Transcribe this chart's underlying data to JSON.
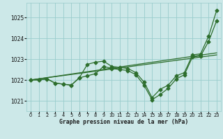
{
  "xlabel": "Graphe pression niveau de la mer (hPa)",
  "background_color": "#cce8e8",
  "grid_color": "#99cccc",
  "line_color": "#2d6e2d",
  "ylim": [
    1020.5,
    1025.7
  ],
  "yticks": [
    1021,
    1022,
    1023,
    1024,
    1025
  ],
  "xlim": [
    -0.5,
    23.5
  ],
  "xticks": [
    0,
    1,
    2,
    3,
    4,
    5,
    6,
    7,
    8,
    9,
    10,
    11,
    12,
    13,
    14,
    15,
    16,
    17,
    18,
    19,
    20,
    21,
    22,
    23
  ],
  "s1": [
    1022.0,
    1022.0,
    1022.05,
    1021.85,
    1021.8,
    1021.75,
    1022.1,
    1022.75,
    1022.85,
    1022.9,
    1022.65,
    1022.6,
    1022.55,
    1022.35,
    1021.9,
    1021.15,
    1021.55,
    1021.75,
    1022.2,
    1022.35,
    1023.2,
    1023.25,
    1024.1,
    1025.35
  ],
  "s2": [
    1022.0,
    1022.0,
    1022.05,
    1021.85,
    1021.8,
    1021.75,
    1022.1,
    1022.2,
    1022.3,
    1022.65,
    1022.55,
    1022.5,
    1022.45,
    1022.25,
    1021.75,
    1021.05,
    1021.3,
    1021.6,
    1022.05,
    1022.25,
    1023.1,
    1023.15,
    1023.85,
    1024.85
  ],
  "t1_x0": 0,
  "t1_y0": 1022.0,
  "t1_x1": 23,
  "t1_y1": 1023.2,
  "t2_x0": 0,
  "t2_y0": 1022.0,
  "t2_x1": 23,
  "t2_y1": 1023.3
}
